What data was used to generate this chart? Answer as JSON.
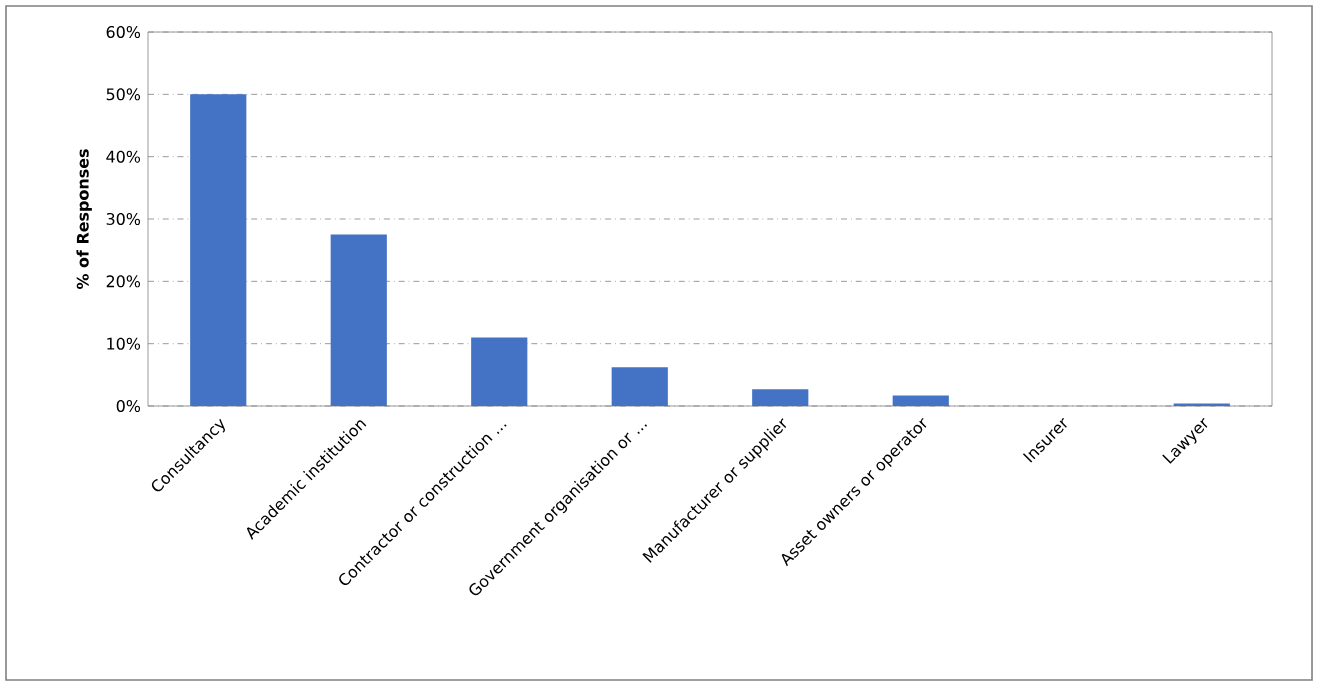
{
  "chart_data": {
    "type": "bar",
    "ylabel": "% of Responses",
    "categories": [
      "Consultancy",
      "Academic institution",
      "Contractor or construction ...",
      "Government organisation or ...",
      "Manufacturer or supplier",
      "Asset owners or operator",
      "Insurer",
      "Lawyer"
    ],
    "values": [
      50,
      27.5,
      11,
      6.2,
      2.7,
      1.7,
      0,
      0.4
    ],
    "color": "#4472c4",
    "ylim": [
      0,
      60
    ],
    "yticks": [
      {
        "value": 0,
        "label": "0%"
      },
      {
        "value": 10,
        "label": "10%"
      },
      {
        "value": 20,
        "label": "20%"
      },
      {
        "value": 30,
        "label": "30%"
      },
      {
        "value": 40,
        "label": "40%"
      },
      {
        "value": 50,
        "label": "50%"
      },
      {
        "value": 60,
        "label": "60%"
      }
    ],
    "grid": "y"
  }
}
